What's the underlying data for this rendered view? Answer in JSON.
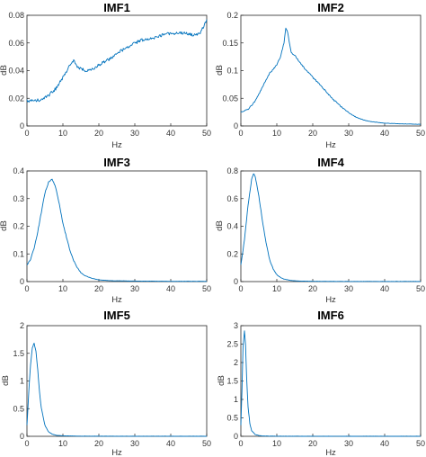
{
  "colors": {
    "line": "#0072BD",
    "axis": "#262626"
  },
  "chart_data": [
    {
      "type": "line",
      "title": "IMF1",
      "xlabel": "Hz",
      "ylabel": "dB",
      "xlim": [
        0,
        50
      ],
      "ylim": [
        0,
        0.08
      ],
      "xticks": [
        "0",
        "10",
        "20",
        "30",
        "40",
        "50"
      ],
      "yticks": [
        "0",
        "0.02",
        "0.04",
        "0.06",
        "0.08"
      ],
      "x": [
        0,
        2,
        4,
        6,
        8,
        10,
        12,
        13,
        14,
        16,
        18,
        20,
        22,
        24,
        26,
        28,
        30,
        32,
        34,
        36,
        38,
        40,
        42,
        44,
        46,
        48,
        50
      ],
      "y": [
        0.018,
        0.018,
        0.019,
        0.022,
        0.027,
        0.035,
        0.044,
        0.048,
        0.043,
        0.04,
        0.041,
        0.044,
        0.047,
        0.05,
        0.054,
        0.057,
        0.06,
        0.062,
        0.063,
        0.064,
        0.066,
        0.067,
        0.067,
        0.067,
        0.066,
        0.066,
        0.077
      ]
    },
    {
      "type": "line",
      "title": "IMF2",
      "xlabel": "Hz",
      "ylabel": "dB",
      "xlim": [
        0,
        50
      ],
      "ylim": [
        0,
        0.2
      ],
      "xticks": [
        "0",
        "10",
        "20",
        "30",
        "40",
        "50"
      ],
      "yticks": [
        "0",
        "0.05",
        "0.1",
        "0.15",
        "0.2"
      ],
      "x": [
        0,
        2,
        4,
        6,
        8,
        10,
        11,
        12,
        12.5,
        13,
        14,
        15,
        16,
        18,
        20,
        22,
        24,
        26,
        28,
        30,
        32,
        34,
        36,
        40,
        44,
        50
      ],
      "y": [
        0.025,
        0.03,
        0.045,
        0.07,
        0.095,
        0.11,
        0.125,
        0.15,
        0.178,
        0.17,
        0.132,
        0.128,
        0.118,
        0.102,
        0.088,
        0.075,
        0.06,
        0.046,
        0.034,
        0.024,
        0.016,
        0.011,
        0.008,
        0.005,
        0.004,
        0.003
      ]
    },
    {
      "type": "line",
      "title": "IMF3",
      "xlabel": "Hz",
      "ylabel": "dB",
      "xlim": [
        0,
        50
      ],
      "ylim": [
        0,
        0.4
      ],
      "xticks": [
        "0",
        "10",
        "20",
        "30",
        "40",
        "50"
      ],
      "yticks": [
        "0",
        "0.1",
        "0.2",
        "0.3",
        "0.4"
      ],
      "x": [
        0,
        1,
        2,
        3,
        4,
        5,
        6,
        7,
        8,
        9,
        10,
        11,
        12,
        13,
        14,
        15,
        16,
        18,
        20,
        24,
        30,
        40,
        50
      ],
      "y": [
        0.06,
        0.08,
        0.12,
        0.18,
        0.25,
        0.32,
        0.36,
        0.37,
        0.34,
        0.28,
        0.21,
        0.16,
        0.11,
        0.075,
        0.05,
        0.032,
        0.022,
        0.012,
        0.006,
        0.003,
        0.002,
        0.001,
        0.001
      ]
    },
    {
      "type": "line",
      "title": "IMF4",
      "xlabel": "Hz",
      "ylabel": "dB",
      "xlim": [
        0,
        50
      ],
      "ylim": [
        0,
        0.8
      ],
      "xticks": [
        "0",
        "10",
        "20",
        "30",
        "40",
        "50"
      ],
      "yticks": [
        "0",
        "0.2",
        "0.4",
        "0.6",
        "0.8"
      ],
      "x": [
        0,
        1,
        2,
        3,
        3.5,
        4,
        5,
        6,
        7,
        8,
        9,
        10,
        11,
        12,
        14,
        16,
        20,
        30,
        40,
        50
      ],
      "y": [
        0.12,
        0.3,
        0.55,
        0.74,
        0.78,
        0.76,
        0.62,
        0.44,
        0.28,
        0.16,
        0.09,
        0.05,
        0.03,
        0.018,
        0.008,
        0.004,
        0.002,
        0.001,
        0.001,
        0.001
      ]
    },
    {
      "type": "line",
      "title": "IMF5",
      "xlabel": "Hz",
      "ylabel": "dB",
      "xlim": [
        0,
        50
      ],
      "ylim": [
        0,
        2
      ],
      "xticks": [
        "0",
        "10",
        "20",
        "30",
        "40",
        "50"
      ],
      "yticks": [
        "0",
        "0.5",
        "1",
        "1.5",
        "2"
      ],
      "x": [
        0,
        0.5,
        1,
        1.5,
        2,
        2.5,
        3,
        3.5,
        4,
        5,
        6,
        7,
        8,
        10,
        15,
        20,
        30,
        40,
        50
      ],
      "y": [
        0.2,
        0.8,
        1.3,
        1.6,
        1.68,
        1.55,
        1.2,
        0.8,
        0.5,
        0.2,
        0.08,
        0.04,
        0.02,
        0.008,
        0.003,
        0.002,
        0.001,
        0.001,
        0.001
      ]
    },
    {
      "type": "line",
      "title": "IMF6",
      "xlabel": "Hz",
      "ylabel": "dB",
      "xlim": [
        0,
        50
      ],
      "ylim": [
        0,
        3
      ],
      "xticks": [
        "0",
        "10",
        "20",
        "30",
        "40",
        "50"
      ],
      "yticks": [
        "0",
        "0.5",
        "1",
        "1.5",
        "2",
        "2.5",
        "3"
      ],
      "x": [
        0,
        0.3,
        0.6,
        1,
        1.3,
        1.6,
        2,
        2.5,
        3,
        4,
        5,
        6,
        8,
        10,
        20,
        30,
        40,
        50
      ],
      "y": [
        0.3,
        1.2,
        2.4,
        2.85,
        2.5,
        1.6,
        0.8,
        0.35,
        0.15,
        0.05,
        0.02,
        0.01,
        0.005,
        0.003,
        0.001,
        0.001,
        0.001,
        0.001
      ]
    }
  ]
}
